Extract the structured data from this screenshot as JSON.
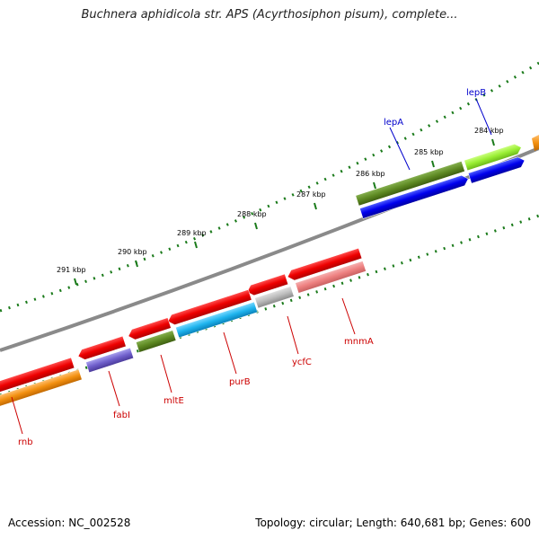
{
  "title": "Buchnera aphidicola str. APS (Acyrthosiphon pisum), complete...",
  "footer": {
    "accession": "Accession: NC_002528",
    "summary": "Topology: circular; Length: 640,681 bp; Genes: 600"
  },
  "ticks": [
    {
      "kbp": 284,
      "label": "284 kbp"
    },
    {
      "kbp": 285,
      "label": "285 kbp"
    },
    {
      "kbp": 286,
      "label": "286 kbp"
    },
    {
      "kbp": 287,
      "label": "287 kbp"
    },
    {
      "kbp": 288,
      "label": "288 kbp"
    },
    {
      "kbp": 289,
      "label": "289 kbp"
    },
    {
      "kbp": 290,
      "label": "290 kbp"
    },
    {
      "kbp": 291,
      "label": "291 kbp"
    }
  ],
  "genes": [
    {
      "name": "lepB",
      "color": "#0000cc"
    },
    {
      "name": "lepA",
      "color": "#0000cc"
    },
    {
      "name": "mnmA",
      "color": "#cc0000"
    },
    {
      "name": "ycfC",
      "color": "#cc0000"
    },
    {
      "name": "purB",
      "color": "#cc0000"
    },
    {
      "name": "mltE",
      "color": "#cc0000"
    },
    {
      "name": "fabI",
      "color": "#cc0000"
    },
    {
      "name": "rnb",
      "color": "#cc0000"
    }
  ],
  "colors": {
    "red": "#ee0000",
    "salmon": "#ee8080",
    "gray_feature": "#bbbbbb",
    "olive": "#5e8a23",
    "lime": "#99ee33",
    "blue": "#0000ee",
    "cyan": "#1eb4ee",
    "purple": "#7060cc",
    "orange": "#f39010",
    "backbone": "#808080",
    "tick_green": "#1a7a1a"
  }
}
